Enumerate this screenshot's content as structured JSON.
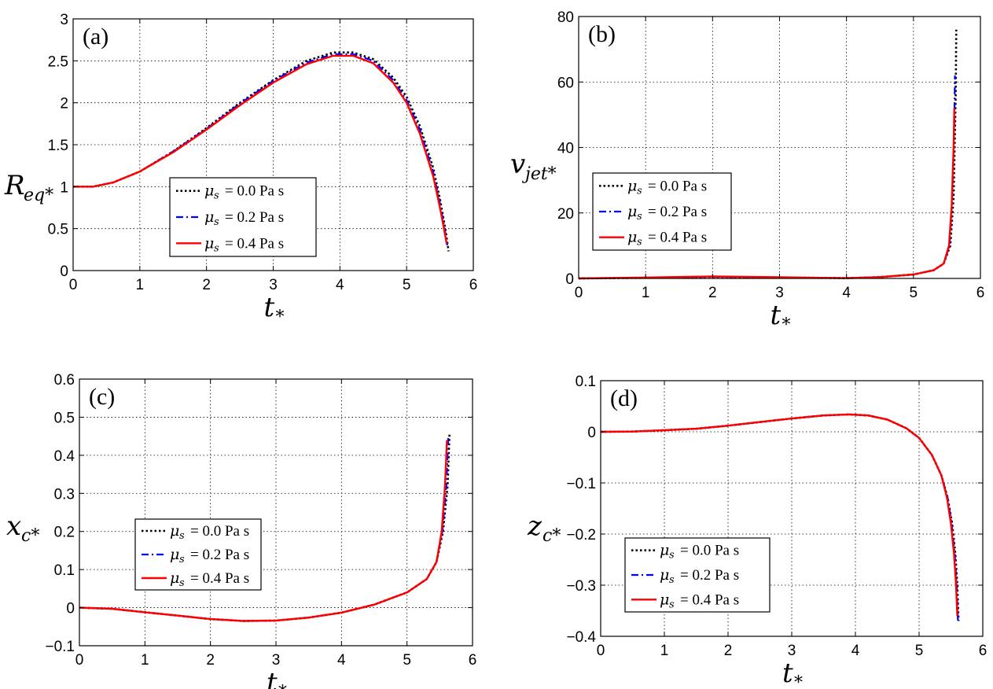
{
  "colors": {
    "series_0": "#000000",
    "series_1": "#0000ff",
    "series_2": "#ff0000",
    "grid": "#000000"
  },
  "legend_labels": [
    "0.0 Pa s",
    "0.2 Pa s",
    "0.4 Pa s"
  ],
  "chart_data": [
    {
      "panel_label": "(a)",
      "type": "line",
      "xlabel": "t*",
      "ylabel": "Req*",
      "xlim": [
        0,
        6
      ],
      "ylim": [
        0,
        3
      ],
      "xticks": [
        "0",
        "1",
        "2",
        "3",
        "4",
        "5",
        "6"
      ],
      "yticks": [
        "0",
        "0.5",
        "1",
        "1.5",
        "2",
        "2.5",
        "3"
      ],
      "grid": true,
      "legend_position": "lower-center",
      "series": [
        {
          "name": "μs = 0.0 Pa s",
          "style": "dotted",
          "x": [
            0,
            0.3,
            0.6,
            1.0,
            1.5,
            2.0,
            2.5,
            3.0,
            3.5,
            3.9,
            4.2,
            4.5,
            4.8,
            5.0,
            5.2,
            5.4,
            5.5,
            5.58,
            5.63
          ],
          "y": [
            1.0,
            1.0,
            1.05,
            1.18,
            1.42,
            1.7,
            2.0,
            2.27,
            2.5,
            2.6,
            2.6,
            2.52,
            2.3,
            2.07,
            1.72,
            1.22,
            0.85,
            0.5,
            0.23
          ]
        },
        {
          "name": "μs = 0.2 Pa s",
          "style": "dashdot",
          "x": [
            0,
            0.3,
            0.6,
            1.0,
            1.5,
            2.0,
            2.5,
            3.0,
            3.5,
            3.9,
            4.2,
            4.5,
            4.8,
            5.0,
            5.2,
            5.4,
            5.5,
            5.57,
            5.61
          ],
          "y": [
            1.0,
            1.0,
            1.05,
            1.18,
            1.42,
            1.69,
            1.99,
            2.26,
            2.48,
            2.58,
            2.58,
            2.5,
            2.27,
            2.03,
            1.68,
            1.17,
            0.8,
            0.5,
            0.3
          ]
        },
        {
          "name": "μs = 0.4 Pa s",
          "style": "solid",
          "x": [
            0,
            0.3,
            0.6,
            1.0,
            1.5,
            2.0,
            2.5,
            3.0,
            3.5,
            3.9,
            4.2,
            4.5,
            4.8,
            5.0,
            5.2,
            5.4,
            5.5,
            5.56,
            5.6
          ],
          "y": [
            1.0,
            1.0,
            1.05,
            1.18,
            1.41,
            1.68,
            1.97,
            2.24,
            2.46,
            2.56,
            2.56,
            2.47,
            2.24,
            2.0,
            1.63,
            1.12,
            0.75,
            0.5,
            0.32
          ]
        }
      ]
    },
    {
      "panel_label": "(b)",
      "type": "line",
      "xlabel": "t*",
      "ylabel": "vjet*",
      "xlim": [
        0,
        6
      ],
      "ylim": [
        0,
        80
      ],
      "xticks": [
        "0",
        "1",
        "2",
        "3",
        "4",
        "5",
        "6"
      ],
      "yticks": [
        "0",
        "20",
        "40",
        "60",
        "80"
      ],
      "grid": true,
      "legend_position": "center-left",
      "series": [
        {
          "name": "μs = 0.0 Pa s",
          "style": "dotted",
          "x": [
            0,
            1.0,
            2.0,
            3.0,
            4.0,
            4.5,
            5.0,
            5.3,
            5.45,
            5.55,
            5.6,
            5.63,
            5.64
          ],
          "y": [
            0,
            0.2,
            0.5,
            0.3,
            0.1,
            0.4,
            1.2,
            2.5,
            4.5,
            10,
            25,
            55,
            76
          ]
        },
        {
          "name": "μs = 0.2 Pa s",
          "style": "dashdot",
          "x": [
            0,
            1.0,
            2.0,
            3.0,
            4.0,
            4.5,
            5.0,
            5.3,
            5.45,
            5.54,
            5.58,
            5.61,
            5.62
          ],
          "y": [
            0,
            0.2,
            0.5,
            0.3,
            0.1,
            0.4,
            1.2,
            2.5,
            4.5,
            10,
            25,
            48,
            62
          ]
        },
        {
          "name": "μs = 0.4 Pa s",
          "style": "solid",
          "x": [
            0,
            1.0,
            2.0,
            3.0,
            4.0,
            4.5,
            5.0,
            5.3,
            5.45,
            5.53,
            5.57,
            5.6,
            5.61
          ],
          "y": [
            0,
            0.3,
            0.6,
            0.35,
            0.1,
            0.4,
            1.2,
            2.5,
            4.5,
            10,
            22,
            40,
            52
          ]
        }
      ]
    },
    {
      "panel_label": "(c)",
      "type": "line",
      "xlabel": "t*",
      "ylabel": "xc*",
      "xlim": [
        0,
        6
      ],
      "ylim": [
        -0.1,
        0.6
      ],
      "xticks": [
        "0",
        "1",
        "2",
        "3",
        "4",
        "5",
        "6"
      ],
      "yticks": [
        "-0.1",
        "0",
        "0.1",
        "0.2",
        "0.3",
        "0.4",
        "0.5",
        "0.6"
      ],
      "grid": true,
      "legend_position": "center-left",
      "series": [
        {
          "name": "μs = 0.0 Pa s",
          "style": "dotted",
          "x": [
            0,
            0.5,
            1.0,
            1.5,
            2.0,
            2.5,
            3.0,
            3.5,
            4.0,
            4.5,
            5.0,
            5.3,
            5.45,
            5.55,
            5.62,
            5.65
          ],
          "y": [
            0,
            -0.003,
            -0.012,
            -0.021,
            -0.03,
            -0.035,
            -0.034,
            -0.026,
            -0.013,
            0.008,
            0.04,
            0.075,
            0.12,
            0.2,
            0.32,
            0.46
          ]
        },
        {
          "name": "μs = 0.2 Pa s",
          "style": "dashdot",
          "x": [
            0,
            0.5,
            1.0,
            1.5,
            2.0,
            2.5,
            3.0,
            3.5,
            4.0,
            4.5,
            5.0,
            5.3,
            5.45,
            5.54,
            5.6,
            5.63
          ],
          "y": [
            0,
            -0.003,
            -0.012,
            -0.021,
            -0.03,
            -0.035,
            -0.034,
            -0.026,
            -0.013,
            0.008,
            0.04,
            0.075,
            0.12,
            0.2,
            0.32,
            0.45
          ]
        },
        {
          "name": "μs = 0.4 Pa s",
          "style": "solid",
          "x": [
            0,
            0.5,
            1.0,
            1.5,
            2.0,
            2.5,
            3.0,
            3.5,
            4.0,
            4.5,
            5.0,
            5.3,
            5.45,
            5.53,
            5.58,
            5.61
          ],
          "y": [
            0,
            -0.003,
            -0.012,
            -0.021,
            -0.03,
            -0.035,
            -0.034,
            -0.026,
            -0.013,
            0.008,
            0.04,
            0.075,
            0.12,
            0.2,
            0.32,
            0.44
          ]
        }
      ]
    },
    {
      "panel_label": "(d)",
      "type": "line",
      "xlabel": "t*",
      "ylabel": "zc*",
      "xlim": [
        0,
        6
      ],
      "ylim": [
        -0.4,
        0.1
      ],
      "xticks": [
        "0",
        "1",
        "2",
        "3",
        "4",
        "5",
        "6"
      ],
      "yticks": [
        "-0.4",
        "-0.3",
        "-0.2",
        "-0.1",
        "0",
        "0.1"
      ],
      "grid": true,
      "legend_position": "lower-left",
      "series": [
        {
          "name": "μs = 0.0 Pa s",
          "style": "dotted",
          "x": [
            0,
            0.5,
            1.0,
            1.5,
            2.0,
            2.5,
            3.0,
            3.5,
            3.9,
            4.2,
            4.5,
            4.8,
            5.0,
            5.2,
            5.35,
            5.45,
            5.52,
            5.57,
            5.6,
            5.62
          ],
          "y": [
            0,
            0.0005,
            0.003,
            0.006,
            0.012,
            0.019,
            0.026,
            0.032,
            0.034,
            0.032,
            0.024,
            0.007,
            -0.012,
            -0.045,
            -0.085,
            -0.13,
            -0.18,
            -0.24,
            -0.3,
            -0.37
          ]
        },
        {
          "name": "μs = 0.2 Pa s",
          "style": "dashdot",
          "x": [
            0,
            0.5,
            1.0,
            1.5,
            2.0,
            2.5,
            3.0,
            3.5,
            3.9,
            4.2,
            4.5,
            4.8,
            5.0,
            5.2,
            5.35,
            5.45,
            5.51,
            5.56,
            5.59,
            5.61
          ],
          "y": [
            0,
            0.0005,
            0.003,
            0.006,
            0.012,
            0.019,
            0.026,
            0.032,
            0.034,
            0.032,
            0.024,
            0.007,
            -0.012,
            -0.045,
            -0.085,
            -0.13,
            -0.18,
            -0.24,
            -0.3,
            -0.37
          ]
        },
        {
          "name": "μs = 0.4 Pa s",
          "style": "solid",
          "x": [
            0,
            0.5,
            1.0,
            1.5,
            2.0,
            2.5,
            3.0,
            3.5,
            3.9,
            4.2,
            4.5,
            4.8,
            5.0,
            5.2,
            5.35,
            5.44,
            5.5,
            5.55,
            5.58,
            5.6
          ],
          "y": [
            0,
            0.0005,
            0.003,
            0.006,
            0.012,
            0.019,
            0.026,
            0.032,
            0.034,
            0.032,
            0.024,
            0.007,
            -0.012,
            -0.045,
            -0.085,
            -0.13,
            -0.18,
            -0.24,
            -0.3,
            -0.36
          ]
        }
      ]
    }
  ]
}
